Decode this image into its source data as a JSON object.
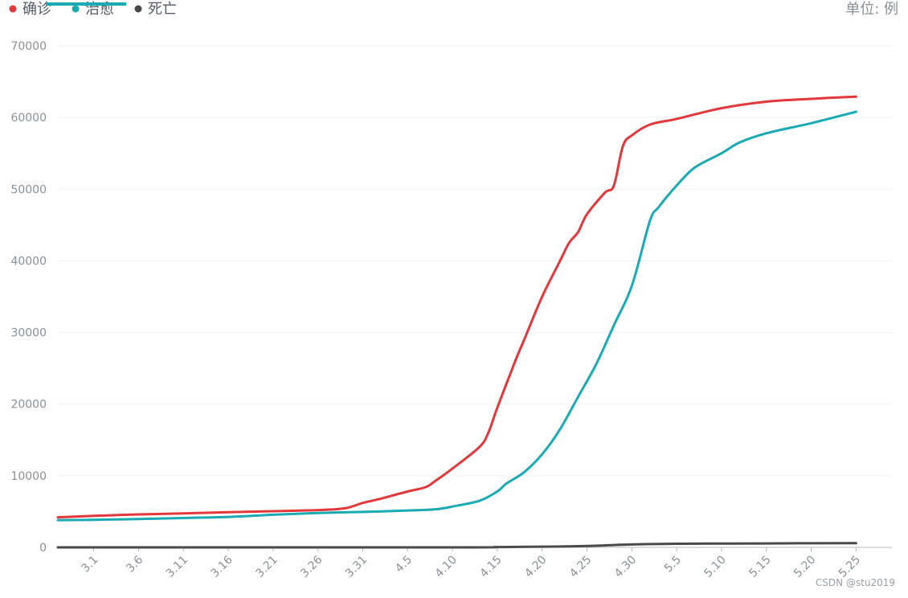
{
  "chart_data": {
    "type": "line",
    "unit_label": "单位: 例",
    "legend": [
      {
        "name": "确诊",
        "color": "#e2383c"
      },
      {
        "name": "治愈",
        "color": "#19aab3"
      },
      {
        "name": "死亡",
        "color": "#4a4a4a"
      }
    ],
    "ylim": [
      0,
      70000
    ],
    "yticks": [
      0,
      10000,
      20000,
      30000,
      40000,
      50000,
      60000,
      70000
    ],
    "xlim": [
      "2.26",
      "5.29"
    ],
    "xticks": [
      "3.1",
      "3.6",
      "3.11",
      "3.16",
      "3.21",
      "3.26",
      "3.31",
      "4.5",
      "4.10",
      "4.15",
      "4.20",
      "4.25",
      "4.30",
      "5.5",
      "5.10",
      "5.15",
      "5.20",
      "5.25"
    ],
    "grid": true,
    "series": [
      {
        "name": "确诊",
        "color": "#e2383c",
        "points": [
          [
            "2.26",
            4200
          ],
          [
            "3.1",
            4400
          ],
          [
            "3.6",
            4600
          ],
          [
            "3.11",
            4750
          ],
          [
            "3.16",
            4900
          ],
          [
            "3.21",
            5050
          ],
          [
            "3.26",
            5200
          ],
          [
            "3.29",
            5450
          ],
          [
            "3.31",
            6200
          ],
          [
            "4.2",
            6800
          ],
          [
            "4.5",
            7800
          ],
          [
            "4.7",
            8400
          ],
          [
            "4.8",
            9200
          ],
          [
            "4.10",
            11000
          ],
          [
            "4.13",
            14000
          ],
          [
            "4.14",
            16000
          ],
          [
            "4.15",
            19500
          ],
          [
            "4.17",
            26000
          ],
          [
            "4.18",
            29000
          ],
          [
            "4.20",
            35000
          ],
          [
            "4.22",
            40000
          ],
          [
            "4.23",
            42500
          ],
          [
            "4.24",
            44000
          ],
          [
            "4.25",
            46500
          ],
          [
            "4.27",
            49500
          ],
          [
            "4.28",
            50500
          ],
          [
            "4.29",
            56000
          ],
          [
            "4.30",
            57500
          ],
          [
            "5.2",
            59000
          ],
          [
            "5.5",
            59800
          ],
          [
            "5.10",
            61300
          ],
          [
            "5.15",
            62200
          ],
          [
            "5.20",
            62600
          ],
          [
            "5.25",
            62900
          ]
        ]
      },
      {
        "name": "治愈",
        "color": "#19aab3",
        "points": [
          [
            "2.26",
            3800
          ],
          [
            "3.1",
            3850
          ],
          [
            "3.6",
            3950
          ],
          [
            "3.11",
            4100
          ],
          [
            "3.16",
            4250
          ],
          [
            "3.21",
            4550
          ],
          [
            "3.26",
            4800
          ],
          [
            "3.31",
            4950
          ],
          [
            "4.5",
            5150
          ],
          [
            "4.8",
            5300
          ],
          [
            "4.10",
            5700
          ],
          [
            "4.13",
            6500
          ],
          [
            "4.15",
            7800
          ],
          [
            "4.16",
            8900
          ],
          [
            "4.18",
            10500
          ],
          [
            "4.20",
            13000
          ],
          [
            "4.22",
            16500
          ],
          [
            "4.24",
            21000
          ],
          [
            "4.26",
            25500
          ],
          [
            "4.28",
            31000
          ],
          [
            "4.30",
            36500
          ],
          [
            "5.2",
            45500
          ],
          [
            "5.3",
            47500
          ],
          [
            "5.5",
            50500
          ],
          [
            "5.7",
            53000
          ],
          [
            "5.10",
            55000
          ],
          [
            "5.12",
            56500
          ],
          [
            "5.15",
            57800
          ],
          [
            "5.20",
            59200
          ],
          [
            "5.25",
            60800
          ]
        ]
      },
      {
        "name": "死亡",
        "color": "#4a4a4a",
        "points": [
          [
            "2.26",
            0
          ],
          [
            "4.10",
            0
          ],
          [
            "4.15",
            50
          ],
          [
            "4.20",
            100
          ],
          [
            "4.25",
            200
          ],
          [
            "4.30",
            400
          ],
          [
            "5.5",
            500
          ],
          [
            "5.15",
            550
          ],
          [
            "5.25",
            600
          ]
        ]
      }
    ]
  },
  "watermark": "CSDN @stu2019"
}
